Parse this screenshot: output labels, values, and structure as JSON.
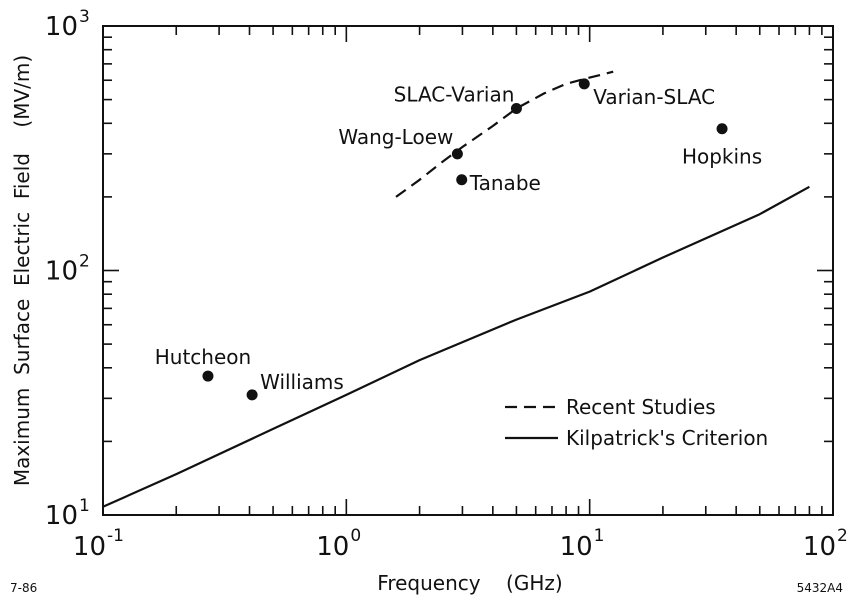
{
  "chart_data": {
    "type": "scatter",
    "title": "",
    "xlabel": "Frequency    (GHz)",
    "ylabel": "Maximum  Surface  Electric  Field    (MV/m)",
    "x_scale": "log",
    "y_scale": "log",
    "xlim": [
      0.1,
      100
    ],
    "ylim": [
      10,
      1000
    ],
    "grid": false,
    "legend_position": "bottom-right",
    "x_ticks": [
      {
        "value": 0.1,
        "base": "10",
        "exp": "-1"
      },
      {
        "value": 1,
        "base": "10",
        "exp": "0"
      },
      {
        "value": 10,
        "base": "10",
        "exp": "1"
      },
      {
        "value": 100,
        "base": "10",
        "exp": "2"
      }
    ],
    "y_ticks": [
      {
        "value": 10,
        "base": "10",
        "exp": "1"
      },
      {
        "value": 100,
        "base": "10",
        "exp": "2"
      },
      {
        "value": 1000,
        "base": "10",
        "exp": "3"
      }
    ],
    "points": [
      {
        "label": "Hutcheon",
        "x": 0.27,
        "y": 37
      },
      {
        "label": "Williams",
        "x": 0.41,
        "y": 31
      },
      {
        "label": "Wang-Loew",
        "x": 2.86,
        "y": 300
      },
      {
        "label": "Tanabe",
        "x": 2.98,
        "y": 235
      },
      {
        "label": "SLAC-Varian",
        "x": 5.0,
        "y": 460
      },
      {
        "label": "Varian-SLAC",
        "x": 9.5,
        "y": 580
      },
      {
        "label": "Hopkins",
        "x": 35,
        "y": 380
      }
    ],
    "series": [
      {
        "name": "Recent Studies",
        "style": "dashed",
        "x": [
          1.6,
          2.0,
          2.5,
          3.0,
          4.0,
          5.0,
          6.5,
          8.0,
          10.0,
          12.5
        ],
        "y": [
          200,
          235,
          280,
          320,
          390,
          460,
          530,
          580,
          615,
          650
        ]
      },
      {
        "name": "Kilpatrick's Criterion",
        "style": "solid",
        "x": [
          0.1,
          0.2,
          0.5,
          1,
          2,
          5,
          10,
          20,
          50,
          80
        ],
        "y": [
          10.8,
          14.7,
          22.5,
          31,
          43,
          63,
          82,
          113,
          170,
          220
        ]
      }
    ]
  },
  "footer": {
    "left_code": "7-86",
    "right_code": "5432A4"
  }
}
